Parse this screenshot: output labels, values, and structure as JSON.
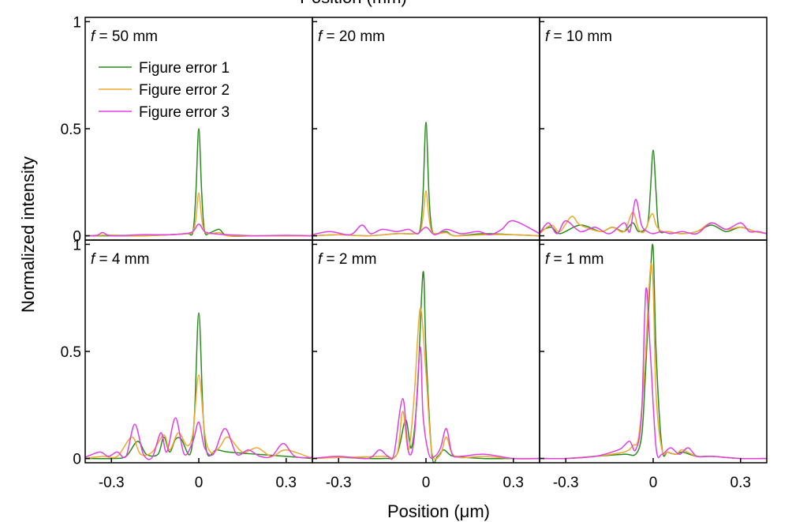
{
  "chart_data": {
    "type": "line",
    "top_cut_text": "Position (mm)",
    "xlabel": "Position (μm)",
    "ylabel": "Normalized intensity",
    "xlim": [
      -0.39,
      0.39
    ],
    "ylim": [
      -0.02,
      1.02
    ],
    "x_ticks": [
      -0.3,
      0,
      0.3
    ],
    "x_tick_labels": [
      "-0.3",
      "0",
      "0.3"
    ],
    "y_ticks": [
      0,
      0.5,
      1
    ],
    "y_tick_labels": [
      "0",
      "0.5",
      "1"
    ],
    "grid": false,
    "legend": {
      "placement": "top-left of first panel",
      "entries": [
        "Figure error 1",
        "Figure error 2",
        "Figure error 3"
      ]
    },
    "colors": [
      "#2a8a1f",
      "#f0a830",
      "#e040e0"
    ],
    "panels": [
      {
        "italic": "f",
        "label": " = 50 mm",
        "series": [
          {
            "name": "Figure error 1",
            "x": [
              -0.39,
              -0.3,
              -0.2,
              -0.1,
              -0.04,
              -0.02,
              -0.01,
              0,
              0.01,
              0.02,
              0.04,
              0.07,
              0.1,
              0.2,
              0.3,
              0.39
            ],
            "y": [
              0,
              0,
              0,
              0.005,
              0.01,
              0.02,
              0.2,
              0.5,
              0.2,
              0.02,
              0.015,
              0.03,
              0,
              0,
              0,
              0
            ]
          },
          {
            "name": "Figure error 2",
            "x": [
              -0.39,
              -0.3,
              -0.2,
              -0.1,
              -0.04,
              -0.02,
              -0.01,
              0,
              0.01,
              0.02,
              0.04,
              0.07,
              0.1,
              0.2,
              0.3,
              0.39
            ],
            "y": [
              0,
              0.003,
              0,
              0.005,
              0.01,
              0.02,
              0.08,
              0.2,
              0.08,
              0.02,
              0.01,
              0.015,
              0,
              0,
              0,
              0
            ]
          },
          {
            "name": "Figure error 3",
            "x": [
              -0.39,
              -0.35,
              -0.33,
              -0.3,
              -0.2,
              -0.1,
              -0.05,
              -0.02,
              0,
              0.02,
              0.05,
              0.1,
              0.2,
              0.3,
              0.39
            ],
            "y": [
              0,
              0.002,
              0.015,
              0,
              0.005,
              0.005,
              0.01,
              0.02,
              0.055,
              0.02,
              0.01,
              0.005,
              0,
              0.002,
              0
            ]
          }
        ]
      },
      {
        "italic": "f",
        "label": " = 20 mm",
        "series": [
          {
            "name": "Figure error 1",
            "x": [
              -0.39,
              -0.3,
              -0.2,
              -0.1,
              -0.04,
              -0.02,
              -0.01,
              0,
              0.01,
              0.02,
              0.04,
              0.07,
              0.1,
              0.2,
              0.3,
              0.39
            ],
            "y": [
              0,
              0.005,
              0,
              0.01,
              0.01,
              0.03,
              0.2,
              0.53,
              0.2,
              0.03,
              0.01,
              0.02,
              0,
              0.01,
              0.005,
              0
            ]
          },
          {
            "name": "Figure error 2",
            "x": [
              -0.39,
              -0.3,
              -0.2,
              -0.1,
              -0.04,
              -0.02,
              -0.01,
              0,
              0.01,
              0.02,
              0.04,
              0.07,
              0.1,
              0.2,
              0.3,
              0.39
            ],
            "y": [
              0,
              0.005,
              0,
              0.01,
              0.01,
              0.02,
              0.09,
              0.21,
              0.09,
              0.02,
              0.01,
              0.015,
              0,
              0.005,
              0.005,
              0
            ]
          },
          {
            "name": "Figure error 3",
            "x": [
              -0.39,
              -0.33,
              -0.26,
              -0.22,
              -0.19,
              -0.15,
              -0.1,
              -0.06,
              -0.03,
              0,
              0.03,
              0.07,
              0.12,
              0.18,
              0.22,
              0.26,
              0.3,
              0.39
            ],
            "y": [
              0.005,
              0.02,
              0.005,
              0.05,
              0.01,
              0.03,
              0.02,
              0.03,
              0.01,
              0.04,
              0.005,
              0.03,
              0.01,
              0.02,
              0.005,
              0.03,
              0.07,
              0.01
            ]
          }
        ]
      },
      {
        "italic": "f",
        "label": " = 10 mm",
        "series": [
          {
            "name": "Figure error 1",
            "x": [
              -0.39,
              -0.35,
              -0.32,
              -0.25,
              -0.18,
              -0.14,
              -0.1,
              -0.07,
              -0.05,
              -0.02,
              -0.01,
              0,
              0.01,
              0.02,
              0.05,
              0.1,
              0.15,
              0.2,
              0.25,
              0.3,
              0.35,
              0.39
            ],
            "y": [
              0.02,
              0.04,
              0.01,
              0.05,
              0.02,
              0.04,
              0.02,
              0.06,
              0.02,
              0.05,
              0.2,
              0.4,
              0.2,
              0.03,
              0.02,
              0.01,
              0.02,
              0.05,
              0.02,
              0.04,
              0.02,
              0.01
            ]
          },
          {
            "name": "Figure error 2",
            "x": [
              -0.39,
              -0.35,
              -0.32,
              -0.28,
              -0.25,
              -0.18,
              -0.14,
              -0.1,
              -0.07,
              -0.05,
              -0.03,
              -0.01,
              0,
              0.01,
              0.03,
              0.05,
              0.1,
              0.15,
              0.2,
              0.25,
              0.3,
              0.35,
              0.39
            ],
            "y": [
              0.01,
              0.05,
              0.02,
              0.09,
              0.05,
              0.02,
              0.04,
              0.02,
              0.11,
              0.03,
              0.02,
              0.09,
              0.1,
              0.05,
              0.02,
              0.02,
              0.01,
              0.02,
              0.06,
              0.03,
              0.04,
              0.02,
              0.01
            ]
          },
          {
            "name": "Figure error 3",
            "x": [
              -0.39,
              -0.36,
              -0.33,
              -0.3,
              -0.25,
              -0.2,
              -0.15,
              -0.1,
              -0.08,
              -0.06,
              -0.04,
              -0.02,
              0,
              0.03,
              0.06,
              0.1,
              0.15,
              0.2,
              0.25,
              0.3,
              0.33,
              0.36,
              0.39
            ],
            "y": [
              0.01,
              0.06,
              0.01,
              0.07,
              0.02,
              0.04,
              0.01,
              0.06,
              0.02,
              0.17,
              0.05,
              0.02,
              0.01,
              0.02,
              0.01,
              0.02,
              0.01,
              0.06,
              0.03,
              0.06,
              0.02,
              0.02,
              0.01
            ]
          }
        ]
      },
      {
        "italic": "f",
        "label": " = 4 mm",
        "series": [
          {
            "name": "Figure error 1",
            "x": [
              -0.39,
              -0.3,
              -0.25,
              -0.21,
              -0.18,
              -0.14,
              -0.12,
              -0.1,
              -0.08,
              -0.06,
              -0.03,
              -0.015,
              0,
              0.015,
              0.03,
              0.06,
              0.1,
              0.2,
              0.3,
              0.39
            ],
            "y": [
              0,
              0,
              0.01,
              0.08,
              0.02,
              0.02,
              0.1,
              0.03,
              0.09,
              0.09,
              0.02,
              0.2,
              0.68,
              0.2,
              0.02,
              0.04,
              0.03,
              0.02,
              0.01,
              0
            ]
          },
          {
            "name": "Figure error 2",
            "x": [
              -0.39,
              -0.33,
              -0.28,
              -0.23,
              -0.2,
              -0.16,
              -0.12,
              -0.1,
              -0.07,
              -0.04,
              -0.02,
              0,
              0.02,
              0.04,
              0.07,
              0.1,
              0.15,
              0.2,
              0.25,
              0.3,
              0.39
            ],
            "y": [
              0,
              0.01,
              0.01,
              0.1,
              0.02,
              0.03,
              0.11,
              0.04,
              0.12,
              0.06,
              0.12,
              0.39,
              0.12,
              0.03,
              0.05,
              0.1,
              0.03,
              0.05,
              0.01,
              0.04,
              0
            ]
          },
          {
            "name": "Figure error 3",
            "x": [
              -0.39,
              -0.34,
              -0.31,
              -0.28,
              -0.25,
              -0.22,
              -0.19,
              -0.16,
              -0.13,
              -0.11,
              -0.08,
              -0.05,
              -0.02,
              0,
              0.02,
              0.05,
              0.09,
              0.13,
              0.17,
              0.21,
              0.25,
              0.29,
              0.33,
              0.39
            ],
            "y": [
              0.005,
              0.03,
              0.01,
              0.03,
              0.01,
              0.16,
              0.02,
              0.005,
              0.12,
              0.03,
              0.19,
              0.02,
              0.08,
              0.17,
              0.05,
              0.02,
              0.14,
              0.02,
              0.04,
              0.01,
              0.01,
              0.07,
              0.01,
              0.005
            ]
          }
        ]
      },
      {
        "italic": "f",
        "label": " = 2 mm",
        "series": [
          {
            "name": "Figure error 1",
            "x": [
              -0.39,
              -0.3,
              -0.15,
              -0.1,
              -0.07,
              -0.05,
              -0.03,
              -0.01,
              0,
              0.02,
              0.04,
              0.06,
              0.08,
              0.1,
              0.2,
              0.3,
              0.39
            ],
            "y": [
              0,
              0.005,
              0,
              0.02,
              0.18,
              0.05,
              0.3,
              0.87,
              0.5,
              0.02,
              0.01,
              0.04,
              0.02,
              0.01,
              0,
              0,
              0
            ]
          },
          {
            "name": "Figure error 2",
            "x": [
              -0.39,
              -0.3,
              -0.15,
              -0.1,
              -0.08,
              -0.06,
              -0.04,
              -0.02,
              0,
              0.02,
              0.05,
              0.07,
              0.1,
              0.2,
              0.3,
              0.39
            ],
            "y": [
              0,
              0.005,
              0.01,
              0.02,
              0.22,
              0.04,
              0.3,
              0.7,
              0.4,
              0.03,
              0.02,
              0.1,
              0.01,
              0.01,
              0,
              0
            ]
          },
          {
            "name": "Figure error 3",
            "x": [
              -0.39,
              -0.3,
              -0.2,
              -0.16,
              -0.13,
              -0.11,
              -0.08,
              -0.06,
              -0.04,
              -0.02,
              -0.01,
              0.01,
              0.03,
              0.05,
              0.07,
              0.09,
              0.12,
              0.2,
              0.3,
              0.39
            ],
            "y": [
              0,
              0.01,
              0,
              0.04,
              0.01,
              0.02,
              0.28,
              0.03,
              0.1,
              0.52,
              0.2,
              0.02,
              0.01,
              0.05,
              0.14,
              0.02,
              0.01,
              0.02,
              0,
              0
            ]
          }
        ]
      },
      {
        "italic": "f",
        "label": " = 1 mm",
        "series": [
          {
            "name": "Figure error 1",
            "x": [
              -0.39,
              -0.3,
              -0.2,
              -0.1,
              -0.06,
              -0.04,
              -0.03,
              -0.01,
              0,
              0.01,
              0.03,
              0.05,
              0.08,
              0.1,
              0.15,
              0.2,
              0.3,
              0.39
            ],
            "y": [
              0,
              0,
              0.01,
              0.02,
              0.02,
              0.1,
              0.3,
              0.85,
              0.98,
              0.5,
              0.05,
              0.03,
              0.02,
              0.03,
              0.01,
              0.01,
              0,
              0
            ]
          },
          {
            "name": "Figure error 2",
            "x": [
              -0.39,
              -0.3,
              -0.2,
              -0.1,
              -0.07,
              -0.05,
              -0.03,
              -0.01,
              0,
              0.01,
              0.03,
              0.05,
              0.08,
              0.1,
              0.15,
              0.2,
              0.3,
              0.39
            ],
            "y": [
              0,
              0,
              0.01,
              0.03,
              0.06,
              0.1,
              0.4,
              0.88,
              0.8,
              0.3,
              0.04,
              0.03,
              0.02,
              0.04,
              0.01,
              0.01,
              0,
              0
            ]
          },
          {
            "name": "Figure error 3",
            "x": [
              -0.39,
              -0.3,
              -0.2,
              -0.12,
              -0.1,
              -0.08,
              -0.06,
              -0.04,
              -0.025,
              -0.01,
              0.01,
              0.03,
              0.06,
              0.09,
              0.12,
              0.15,
              0.2,
              0.3,
              0.39
            ],
            "y": [
              0,
              0,
              0.01,
              0.04,
              0.06,
              0.08,
              0.04,
              0.2,
              0.79,
              0.5,
              0.05,
              0.02,
              0.05,
              0.02,
              0.05,
              0.01,
              0.01,
              0,
              0
            ]
          }
        ]
      }
    ]
  }
}
